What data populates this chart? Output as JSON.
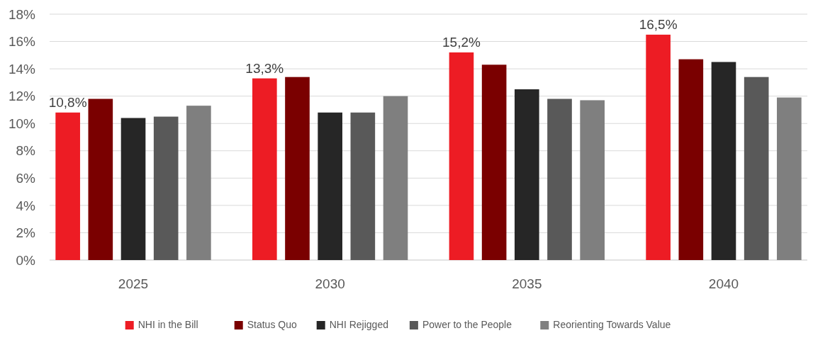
{
  "chart_data": {
    "type": "bar",
    "categories": [
      "2025",
      "2030",
      "2035",
      "2040"
    ],
    "series": [
      {
        "name": "NHI in the Bill",
        "color": "#ed1c24",
        "values": [
          10.8,
          13.3,
          15.2,
          16.5
        ],
        "value_labels": [
          "10,8%",
          "13,3%",
          "15,2%",
          "16,5%"
        ]
      },
      {
        "name": "Status Quo",
        "color": "#7a0000",
        "values": [
          11.8,
          13.4,
          14.3,
          14.7
        ]
      },
      {
        "name": "NHI Rejigged",
        "color": "#262626",
        "values": [
          10.4,
          10.8,
          12.5,
          14.5
        ]
      },
      {
        "name": "Power to the People",
        "color": "#595959",
        "values": [
          10.5,
          10.8,
          11.8,
          13.4
        ]
      },
      {
        "name": "Reorienting Towards Value",
        "color": "#7f7f7f",
        "values": [
          11.3,
          12.0,
          11.7,
          11.9
        ]
      }
    ],
    "ylim": [
      0,
      18
    ],
    "yticks": [
      {
        "value": 0,
        "label": "0%"
      },
      {
        "value": 2,
        "label": "2%"
      },
      {
        "value": 4,
        "label": "4%"
      },
      {
        "value": 6,
        "label": "6%"
      },
      {
        "value": 8,
        "label": "8%"
      },
      {
        "value": 10,
        "label": "10%"
      },
      {
        "value": 12,
        "label": "12%"
      },
      {
        "value": 14,
        "label": "14%"
      },
      {
        "value": 16,
        "label": "16%"
      },
      {
        "value": 18,
        "label": "18%"
      }
    ],
    "grid": "y",
    "legend": "bottom"
  }
}
